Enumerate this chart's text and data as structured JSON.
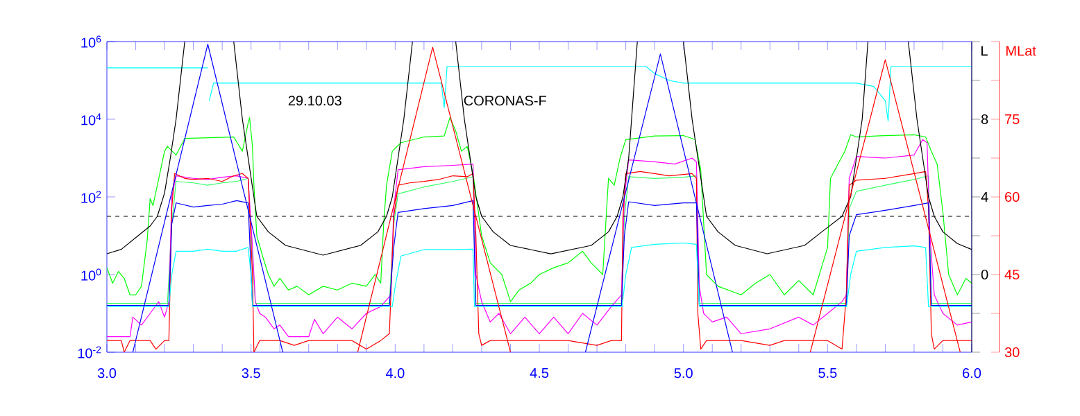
{
  "chart_data": {
    "type": "line",
    "log": "y",
    "marker": "none",
    "line_style": "solid",
    "annotations": [
      "29.10.03",
      "CORONAS-F"
    ],
    "xlim": [
      3.0,
      6.0
    ],
    "xticks": [
      {
        "value": 3.0,
        "label": "3.0"
      },
      {
        "value": 3.1,
        "label": null
      },
      {
        "value": 3.2,
        "label": null
      },
      {
        "value": 3.3,
        "label": null
      },
      {
        "value": 3.4,
        "label": null
      },
      {
        "value": 3.5,
        "label": "3.5"
      },
      {
        "value": 3.6,
        "label": null
      },
      {
        "value": 3.7,
        "label": null
      },
      {
        "value": 3.8,
        "label": null
      },
      {
        "value": 3.9,
        "label": null
      },
      {
        "value": 4.0,
        "label": "4.0"
      },
      {
        "value": 4.1,
        "label": null
      },
      {
        "value": 4.2,
        "label": null
      },
      {
        "value": 4.3,
        "label": null
      },
      {
        "value": 4.4,
        "label": null
      },
      {
        "value": 4.5,
        "label": "4.5"
      },
      {
        "value": 4.6,
        "label": null
      },
      {
        "value": 4.7,
        "label": null
      },
      {
        "value": 4.8,
        "label": null
      },
      {
        "value": 4.9,
        "label": null
      },
      {
        "value": 5.0,
        "label": "5.0"
      },
      {
        "value": 5.1,
        "label": null
      },
      {
        "value": 5.2,
        "label": null
      },
      {
        "value": 5.3,
        "label": null
      },
      {
        "value": 5.4,
        "label": null
      },
      {
        "value": 5.5,
        "label": "5.5"
      },
      {
        "value": 5.6,
        "label": null
      },
      {
        "value": 5.7,
        "label": null
      },
      {
        "value": 5.8,
        "label": null
      },
      {
        "value": 5.9,
        "label": null
      },
      {
        "value": 6.0,
        "label": "6.0"
      }
    ],
    "ylim": [
      0.01,
      1000000
    ],
    "yticks": [
      {
        "value": 0.01,
        "label": "10$^{-2}$"
      },
      {
        "value": 1,
        "label": "10$^{0}$"
      },
      {
        "value": 100,
        "label": "10$^{2}$"
      },
      {
        "value": 10000,
        "label": "10$^{4}$"
      },
      {
        "value": 1000000,
        "label": "10$^{6}$"
      }
    ],
    "y2label": "L",
    "y2lim": [
      -4,
      12
    ],
    "y2ticks": [
      {
        "value": -4,
        "label": null
      },
      {
        "value": -2,
        "label": null
      },
      0,
      {
        "value": 2,
        "label": null
      },
      4,
      {
        "value": 6,
        "label": null
      },
      8,
      {
        "value": 10,
        "label": null
      },
      {
        "value": 12,
        "label": null
      }
    ],
    "y3label": "MLat",
    "y3lim": [
      30,
      90
    ],
    "y3ticks": [
      30,
      {
        "value": 37.5,
        "label": null
      },
      45,
      {
        "value": 52.5,
        "label": null
      },
      60,
      {
        "value": 67.5,
        "label": null
      },
      75,
      {
        "value": 82.5,
        "label": null
      },
      {
        "value": 90,
        "label": null
      }
    ],
    "ref_lines": [
      {
        "axis": "y2",
        "value": 3,
        "color": "#000000",
        "line_style": "dashed"
      }
    ],
    "series": [
      {
        "color": "#00ff00",
        "x": [
          3.0,
          3.02,
          3.04,
          3.06,
          3.08,
          3.1,
          3.12,
          3.14,
          3.15,
          3.16,
          3.18,
          3.2,
          3.21,
          3.24,
          3.27,
          3.44,
          3.47,
          3.49,
          3.495,
          3.505,
          3.51,
          3.52,
          3.54,
          3.56,
          3.58,
          3.6,
          3.63,
          3.66,
          3.7,
          3.75,
          3.8,
          3.85,
          3.9,
          3.93,
          3.95,
          3.96,
          3.97,
          3.99,
          4.02,
          4.1,
          4.17,
          4.19,
          4.21,
          4.23,
          4.25,
          4.27,
          4.3,
          4.33,
          4.37,
          4.4,
          4.43,
          4.47,
          4.5,
          4.55,
          4.6,
          4.65,
          4.68,
          4.72,
          4.74,
          4.76,
          4.78,
          4.8,
          4.9,
          5.0,
          5.04,
          5.06,
          5.08,
          5.12,
          5.2,
          5.25,
          5.3,
          5.35,
          5.4,
          5.45,
          5.5,
          5.51,
          5.54,
          5.56,
          5.58,
          5.6,
          5.7,
          5.8,
          5.84,
          5.86,
          5.88,
          5.9,
          5.92,
          5.95,
          5.98,
          6.0
        ],
        "values": [
          1.5,
          0.6,
          1.2,
          0.8,
          0.3,
          0.3,
          0.5,
          8,
          90,
          60,
          300,
          1500,
          2000,
          1200,
          3200,
          3500,
          1500,
          8000,
          11000,
          2000,
          200,
          10,
          3,
          1,
          0.5,
          0.8,
          0.4,
          0.5,
          0.3,
          0.5,
          0.4,
          0.6,
          0.5,
          1,
          0.6,
          20,
          200,
          1500,
          2500,
          3500,
          3700,
          11000,
          5000,
          1500,
          2000,
          400,
          10,
          2,
          1,
          0.2,
          0.4,
          0.6,
          1,
          1.5,
          2,
          4,
          2,
          1,
          300,
          200,
          1000,
          3000,
          3700,
          3800,
          3000,
          500,
          1,
          0.5,
          0.3,
          0.6,
          1,
          0.3,
          0.7,
          0.3,
          5,
          300,
          800,
          1500,
          4000,
          3500,
          3800,
          4000,
          3500,
          1500,
          700,
          40,
          1,
          0.3,
          0.8,
          0.6
        ]
      },
      {
        "color": "#33ff66",
        "x": [
          3.0,
          3.21,
          3.225,
          3.24,
          3.3,
          3.35,
          3.4,
          3.45,
          3.49,
          3.505,
          3.515,
          3.98,
          3.995,
          4.01,
          4.1,
          4.2,
          4.27,
          4.28,
          4.785,
          4.795,
          4.81,
          4.9,
          5.0,
          5.045,
          5.055,
          5.565,
          5.575,
          5.6,
          5.7,
          5.8,
          5.85,
          5.86,
          6.0
        ],
        "values": [
          0.18,
          0.18,
          20,
          250,
          230,
          200,
          230,
          250,
          300,
          3,
          0.18,
          0.18,
          20,
          120,
          180,
          250,
          330,
          0.18,
          0.18,
          30,
          330,
          300,
          320,
          350,
          0.18,
          0.18,
          50,
          140,
          200,
          280,
          350,
          0.18,
          0.18
        ]
      },
      {
        "color": "#ff00ff",
        "x": [
          3.0,
          3.08,
          3.09,
          3.12,
          3.15,
          3.18,
          3.2,
          3.215,
          3.225,
          3.24,
          3.3,
          3.35,
          3.4,
          3.45,
          3.49,
          3.505,
          3.515,
          3.53,
          3.55,
          3.58,
          3.6,
          3.63,
          3.7,
          3.72,
          3.75,
          3.8,
          3.85,
          3.9,
          3.95,
          3.985,
          3.995,
          4.01,
          4.1,
          4.2,
          4.27,
          4.28,
          4.3,
          4.33,
          4.36,
          4.4,
          4.45,
          4.5,
          4.55,
          4.6,
          4.65,
          4.7,
          4.75,
          4.785,
          4.795,
          4.81,
          4.9,
          4.97,
          5.03,
          5.045,
          5.055,
          5.07,
          5.1,
          5.15,
          5.2,
          5.3,
          5.4,
          5.45,
          5.5,
          5.55,
          5.565,
          5.575,
          5.6,
          5.7,
          5.8,
          5.83,
          5.845,
          5.855,
          5.87,
          5.9,
          5.95,
          6.0
        ],
        "values": [
          0.025,
          0.025,
          0.08,
          0.05,
          0.1,
          0.2,
          0.08,
          0.2,
          100,
          350,
          300,
          280,
          320,
          350,
          300,
          5,
          0.2,
          0.1,
          0.08,
          0.04,
          0.05,
          0.025,
          0.025,
          0.07,
          0.03,
          0.08,
          0.04,
          0.1,
          0.15,
          0.3,
          50,
          500,
          600,
          650,
          700,
          1,
          0.2,
          0.06,
          0.1,
          0.03,
          0.08,
          0.03,
          0.08,
          0.03,
          0.1,
          0.05,
          0.15,
          0.3,
          100,
          900,
          800,
          700,
          1000,
          800,
          0.5,
          0.1,
          0.06,
          0.08,
          0.03,
          0.04,
          0.08,
          0.05,
          0.1,
          0.2,
          0.3,
          300,
          1100,
          1000,
          1200,
          3000,
          2500,
          10,
          0.3,
          0.1,
          0.05,
          0.06
        ]
      },
      {
        "color": "#ff0000",
        "x": [
          3.0,
          3.05,
          3.06,
          3.08,
          3.15,
          3.17,
          3.2,
          3.215,
          3.225,
          3.235,
          3.27,
          3.3,
          3.35,
          3.4,
          3.44,
          3.47,
          3.49,
          3.505,
          3.51,
          3.53,
          3.6,
          3.65,
          3.7,
          3.85,
          3.9,
          3.95,
          3.98,
          3.995,
          4.01,
          4.05,
          4.1,
          4.15,
          4.2,
          4.25,
          4.27,
          4.28,
          4.29,
          4.3,
          4.33,
          4.5,
          4.6,
          4.7,
          4.75,
          4.785,
          4.79,
          4.8,
          4.85,
          4.9,
          4.95,
          5.0,
          5.03,
          5.045,
          5.05,
          5.06,
          5.08,
          5.2,
          5.3,
          5.35,
          5.5,
          5.55,
          5.565,
          5.575,
          5.6,
          5.7,
          5.8,
          5.84,
          5.85,
          5.86,
          5.87,
          5.9,
          6.0
        ],
        "values": [
          0.02,
          0.02,
          0.01,
          0.02,
          0.02,
          0.012,
          0.02,
          0.02,
          50,
          400,
          300,
          280,
          300,
          250,
          350,
          400,
          300,
          1,
          0.01,
          0.02,
          0.02,
          0.015,
          0.02,
          0.02,
          0.012,
          0.02,
          0.03,
          30,
          200,
          230,
          250,
          280,
          350,
          330,
          400,
          10,
          0.03,
          0.015,
          0.02,
          0.02,
          0.02,
          0.015,
          0.02,
          0.02,
          30,
          400,
          450,
          400,
          350,
          380,
          400,
          300,
          0.1,
          0.012,
          0.02,
          0.02,
          0.015,
          0.02,
          0.02,
          0.012,
          0.3,
          200,
          270,
          300,
          400,
          450,
          50,
          0.03,
          0.012,
          0.02,
          0.02
        ]
      },
      {
        "color": "#0000ff",
        "x": [
          3.0,
          3.215,
          3.225,
          3.24,
          3.3,
          3.35,
          3.4,
          3.45,
          3.49,
          3.505,
          3.98,
          3.995,
          4.01,
          4.1,
          4.2,
          4.27,
          4.28,
          4.785,
          4.795,
          4.81,
          4.9,
          5.0,
          5.045,
          5.055,
          5.565,
          5.575,
          5.6,
          5.7,
          5.8,
          5.85,
          5.86,
          6.0
        ],
        "values": [
          0.16,
          0.16,
          20,
          70,
          55,
          60,
          65,
          80,
          70,
          0.16,
          0.16,
          5,
          40,
          50,
          60,
          80,
          0.16,
          0.16,
          10,
          75,
          60,
          70,
          70,
          0.16,
          0.16,
          10,
          35,
          45,
          60,
          70,
          0.16,
          0.16
        ]
      },
      {
        "color": "#00ffff",
        "x": [
          3.0,
          3.215,
          3.225,
          3.24,
          3.3,
          3.35,
          3.4,
          3.45,
          3.49,
          3.5,
          3.505,
          3.99,
          4.0,
          4.02,
          4.1,
          4.2,
          4.27,
          4.275,
          4.787,
          4.8,
          4.82,
          4.9,
          5.0,
          5.045,
          5.055,
          5.566,
          5.58,
          5.6,
          5.7,
          5.8,
          5.84,
          5.85,
          6.0
        ],
        "values": [
          0.15,
          0.15,
          1,
          4,
          4,
          4.5,
          4,
          4,
          5,
          1,
          0.15,
          0.15,
          0.5,
          3,
          4.4,
          4.4,
          4.5,
          0.15,
          0.15,
          1,
          5,
          6,
          6.5,
          6,
          0.15,
          0.15,
          1,
          4,
          5,
          5.5,
          5,
          0.15,
          0.15
        ]
      },
      {
        "color": "#00ffff",
        "x": [
          3.0,
          3.35,
          3.352,
          3.355,
          3.37,
          4.16,
          4.17,
          4.18,
          4.87,
          4.9,
          4.95,
          5.0,
          5.6,
          5.66,
          5.7,
          5.71,
          5.72,
          6.0
        ],
        "values": [
          210000,
          210000,
          null,
          30000,
          85000,
          85000,
          20000,
          230000,
          230000,
          150000,
          100000,
          85000,
          85000,
          70000,
          30000,
          9000,
          230000,
          230000
        ]
      },
      {
        "color": "#000000",
        "axis": "y2",
        "x": [
          3.0,
          3.05,
          3.1,
          3.15,
          3.175,
          3.2,
          3.22,
          3.24,
          3.27,
          3.35,
          3.44,
          3.47,
          3.49,
          3.51,
          3.52,
          3.56,
          3.62,
          3.75,
          3.88,
          3.94,
          3.97,
          3.99,
          4.01,
          4.03,
          4.06,
          4.13,
          4.21,
          4.24,
          4.26,
          4.28,
          4.3,
          4.34,
          4.4,
          4.54,
          4.68,
          4.74,
          4.77,
          4.79,
          4.81,
          4.82,
          4.84,
          4.92,
          5.0,
          5.03,
          5.05,
          5.07,
          5.08,
          5.12,
          5.18,
          5.29,
          5.42,
          5.48,
          5.55,
          5.58,
          5.6,
          5.62,
          5.64,
          5.71,
          5.78,
          5.81,
          5.83,
          5.85,
          5.87,
          5.9,
          5.95,
          6.0
        ],
        "values": [
          1.07,
          1.3,
          1.9,
          2.5,
          3,
          4.2,
          6,
          8,
          12,
          null,
          12,
          8,
          6,
          4,
          3,
          2.2,
          1.5,
          1.0,
          1.5,
          2.2,
          3,
          4,
          6,
          8,
          12,
          null,
          12,
          8,
          6,
          4,
          3,
          2.2,
          1.5,
          1.07,
          1.5,
          2.2,
          3,
          4,
          6,
          8,
          12,
          null,
          12,
          8,
          6,
          4,
          3,
          2.2,
          1.5,
          1.07,
          1.5,
          2.2,
          3,
          4,
          6,
          8,
          12,
          null,
          12,
          8,
          6,
          4,
          3,
          2.2,
          1.6,
          1.29
        ]
      },
      {
        "color": "#ff0000",
        "axis": "y3",
        "x": [
          3.87,
          4.13,
          4.4,
          4.9,
          5.44,
          5.7,
          5.96
        ],
        "values": [
          30,
          88.9,
          30,
          null,
          30,
          86.5,
          30
        ]
      },
      {
        "color": "#0000ff",
        "axis": "y3",
        "x": [
          3.09,
          3.35,
          3.61,
          4.1,
          4.66,
          4.92,
          5.17
        ],
        "values": [
          30,
          89.5,
          30,
          null,
          30,
          87.6,
          30
        ]
      }
    ]
  }
}
